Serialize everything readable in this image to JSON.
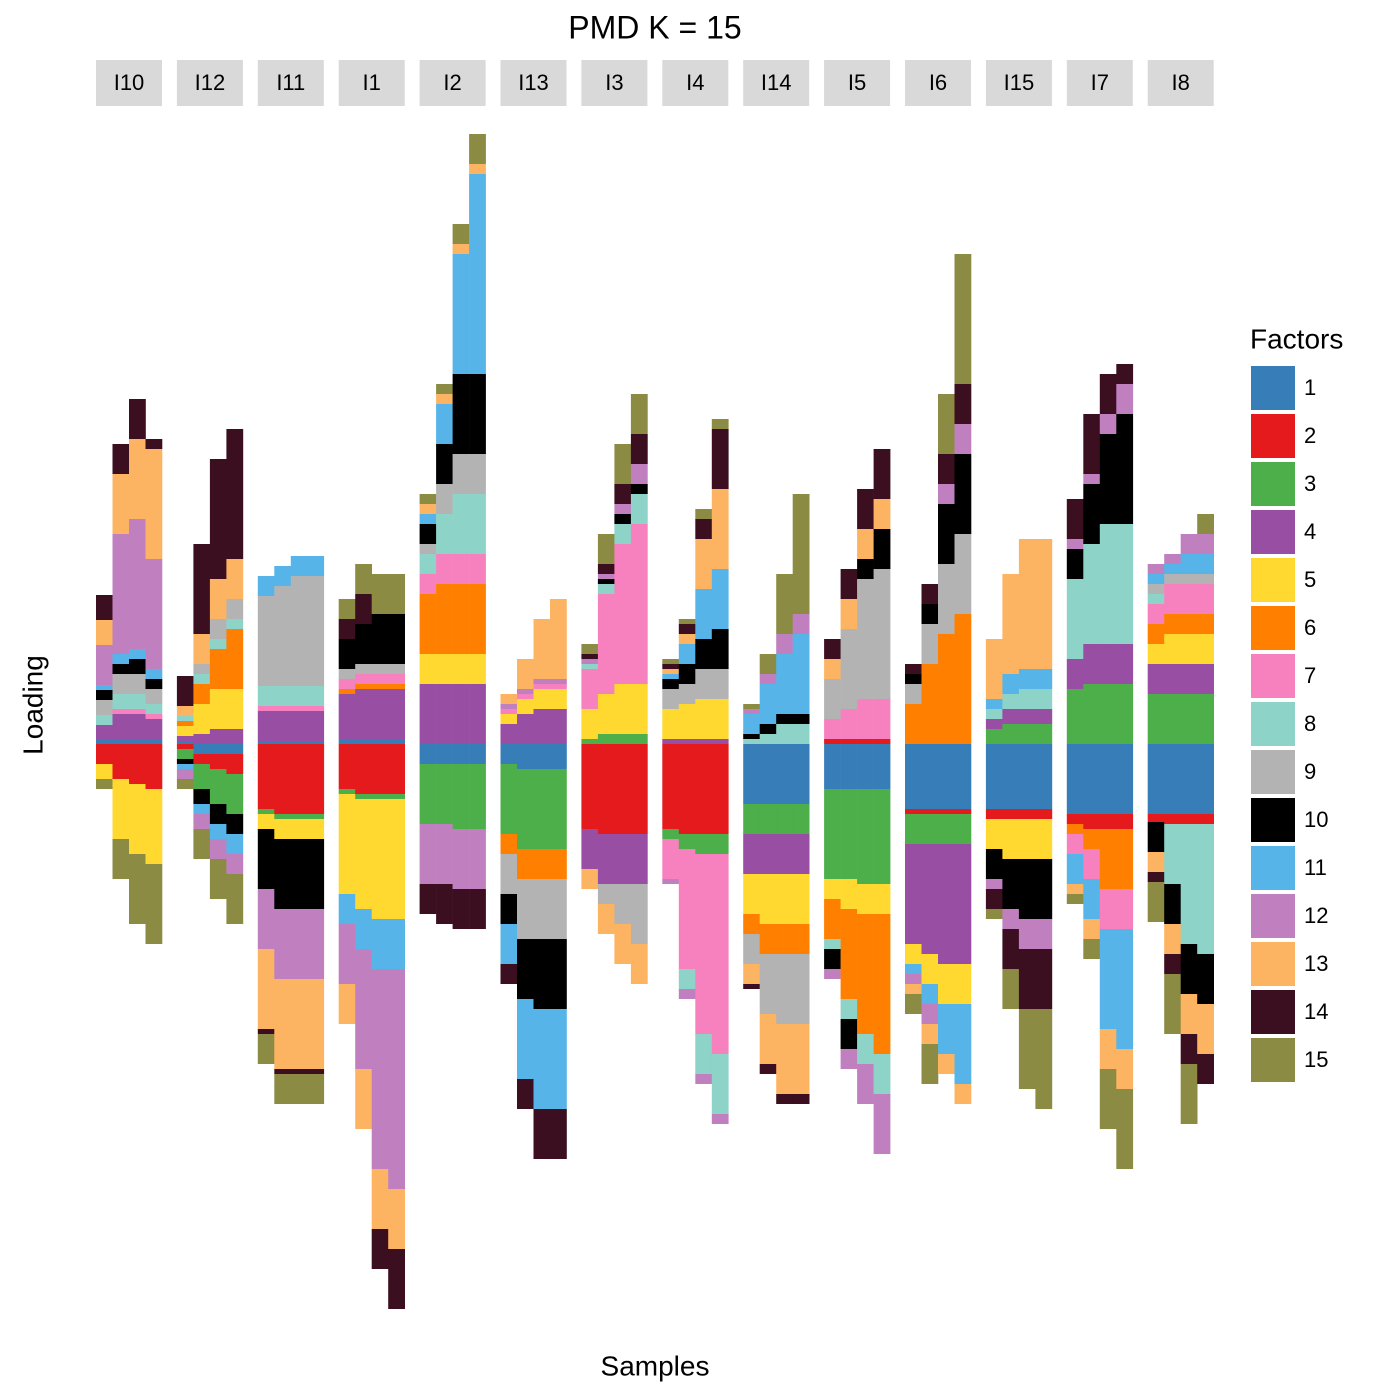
{
  "chart_data": {
    "type": "faceted_stacked_bar",
    "title": "PMD K = 15",
    "x_label": "Samples",
    "y_label": "Loading",
    "ylim": [
      -586,
      624
    ],
    "legend": {
      "title": "Factors",
      "items": [
        {
          "name": "1",
          "color": "#377eb8"
        },
        {
          "name": "2",
          "color": "#e41a1c"
        },
        {
          "name": "3",
          "color": "#4daf4a"
        },
        {
          "name": "4",
          "color": "#984ea3"
        },
        {
          "name": "5",
          "color": "#ffd92f"
        },
        {
          "name": "6",
          "color": "#ff7f00"
        },
        {
          "name": "7",
          "color": "#f781bf"
        },
        {
          "name": "8",
          "color": "#8dd3c7"
        },
        {
          "name": "9",
          "color": "#b3b3b3"
        },
        {
          "name": "10",
          "color": "#000000"
        },
        {
          "name": "11",
          "color": "#56b4e9"
        },
        {
          "name": "12",
          "color": "#c080c0"
        },
        {
          "name": "13",
          "color": "#fdb462"
        },
        {
          "name": "14",
          "color": "#3b0f1f"
        },
        {
          "name": "15",
          "color": "#8b8b44"
        }
      ]
    },
    "facets": [
      {
        "label": "I10",
        "samples": [
          [
            4,
            -20,
            0,
            15,
            -15,
            0,
            0,
            10,
            15,
            10,
            5,
            40,
            25,
            25,
            -10
          ],
          [
            5,
            -35,
            0,
            25,
            -60,
            0,
            5,
            15,
            20,
            10,
            10,
            120,
            60,
            30,
            -40
          ],
          [
            5,
            -40,
            0,
            25,
            -70,
            0,
            5,
            15,
            20,
            15,
            10,
            130,
            80,
            40,
            -70
          ],
          [
            5,
            -45,
            0,
            20,
            -75,
            0,
            5,
            10,
            15,
            10,
            10,
            110,
            110,
            10,
            -80
          ]
        ]
      },
      {
        "label": "I12",
        "samples": [
          [
            3,
            -5,
            -10,
            5,
            10,
            5,
            0,
            5,
            0,
            -5,
            -5,
            -10,
            10,
            30,
            -10
          ],
          [
            -10,
            -10,
            -25,
            10,
            30,
            20,
            0,
            10,
            10,
            -15,
            -10,
            -15,
            30,
            90,
            -30
          ],
          [
            -10,
            -15,
            -35,
            15,
            40,
            40,
            0,
            10,
            20,
            -20,
            -15,
            -20,
            40,
            120,
            -40
          ],
          [
            -10,
            -20,
            -40,
            15,
            40,
            60,
            0,
            10,
            20,
            -20,
            -20,
            -20,
            40,
            130,
            -50
          ]
        ]
      },
      {
        "label": "I11",
        "samples": [
          [
            3,
            -65,
            -5,
            30,
            -15,
            0,
            5,
            20,
            90,
            -60,
            20,
            -60,
            -80,
            -5,
            -30
          ],
          [
            3,
            -70,
            -5,
            30,
            -20,
            0,
            5,
            20,
            100,
            -70,
            20,
            -70,
            -90,
            -5,
            -30
          ],
          [
            3,
            -70,
            -5,
            30,
            -20,
            0,
            5,
            20,
            110,
            -70,
            20,
            -70,
            -90,
            -5,
            -30
          ],
          [
            3,
            -70,
            -5,
            30,
            -20,
            0,
            5,
            20,
            110,
            -70,
            20,
            -70,
            -90,
            -5,
            -30
          ]
        ]
      },
      {
        "label": "I1",
        "samples": [
          [
            5,
            -45,
            -5,
            45,
            -100,
            5,
            10,
            0,
            10,
            30,
            -30,
            -60,
            -40,
            20,
            20
          ],
          [
            5,
            -50,
            -5,
            50,
            -110,
            5,
            10,
            0,
            10,
            40,
            -40,
            -120,
            -60,
            30,
            30
          ],
          [
            5,
            -50,
            -5,
            50,
            -120,
            5,
            10,
            0,
            10,
            50,
            -50,
            -200,
            -60,
            -40,
            40
          ],
          [
            5,
            -50,
            -5,
            50,
            -120,
            5,
            10,
            0,
            10,
            50,
            -50,
            -220,
            -60,
            -60,
            40
          ]
        ]
      },
      {
        "label": "I2",
        "samples": [
          [
            -20,
            0,
            -60,
            60,
            30,
            60,
            20,
            20,
            10,
            20,
            10,
            -60,
            10,
            -30,
            10
          ],
          [
            -20,
            0,
            -60,
            60,
            30,
            70,
            30,
            40,
            30,
            40,
            40,
            -60,
            10,
            -40,
            10
          ],
          [
            -20,
            0,
            -65,
            60,
            30,
            70,
            30,
            60,
            40,
            80,
            120,
            -60,
            10,
            -40,
            20
          ],
          [
            -20,
            0,
            -65,
            60,
            30,
            70,
            30,
            60,
            40,
            80,
            200,
            -60,
            10,
            -40,
            30
          ]
        ]
      },
      {
        "label": "I13",
        "samples": [
          [
            -20,
            0,
            -70,
            20,
            10,
            -20,
            5,
            0,
            -40,
            -30,
            -40,
            5,
            10,
            -20,
            0
          ],
          [
            -25,
            0,
            -80,
            30,
            15,
            -30,
            5,
            0,
            -60,
            -60,
            -80,
            5,
            30,
            -30,
            0
          ],
          [
            -25,
            0,
            -80,
            35,
            20,
            -30,
            5,
            0,
            -60,
            -70,
            -100,
            5,
            60,
            -50,
            0
          ],
          [
            -25,
            0,
            -80,
            35,
            20,
            -30,
            5,
            0,
            -60,
            -70,
            -100,
            5,
            80,
            -50,
            0
          ]
        ]
      },
      {
        "label": "I3",
        "samples": [
          [
            0,
            -85,
            5,
            -40,
            30,
            0,
            40,
            5,
            0,
            0,
            0,
            5,
            -20,
            5,
            10
          ],
          [
            0,
            -90,
            10,
            -50,
            40,
            0,
            100,
            10,
            -20,
            5,
            0,
            5,
            -30,
            10,
            30
          ],
          [
            0,
            -90,
            10,
            -50,
            50,
            0,
            140,
            20,
            -40,
            10,
            0,
            10,
            -40,
            20,
            40
          ],
          [
            0,
            -90,
            10,
            -50,
            50,
            0,
            160,
            30,
            -60,
            10,
            0,
            20,
            -40,
            30,
            40
          ]
        ]
      },
      {
        "label": "I4",
        "samples": [
          [
            0,
            -85,
            -10,
            5,
            30,
            0,
            -40,
            0,
            20,
            10,
            5,
            -5,
            5,
            5,
            5
          ],
          [
            0,
            -90,
            -15,
            5,
            35,
            0,
            -120,
            -20,
            20,
            20,
            20,
            -10,
            10,
            10,
            5
          ],
          [
            0,
            -90,
            -20,
            5,
            40,
            0,
            -180,
            -40,
            30,
            30,
            50,
            -10,
            50,
            20,
            10
          ],
          [
            0,
            -90,
            -20,
            5,
            40,
            0,
            -200,
            -60,
            30,
            40,
            60,
            -10,
            80,
            60,
            10
          ]
        ]
      },
      {
        "label": "I14",
        "samples": [
          [
            -60,
            0,
            -30,
            -40,
            -40,
            -20,
            0,
            5,
            -30,
            5,
            20,
            5,
            -20,
            -5,
            5
          ],
          [
            -60,
            0,
            -30,
            -40,
            -50,
            -30,
            0,
            10,
            -60,
            10,
            40,
            10,
            -50,
            -10,
            20
          ],
          [
            -60,
            0,
            -30,
            -40,
            -50,
            -30,
            0,
            20,
            -70,
            10,
            60,
            20,
            -70,
            -10,
            60
          ],
          [
            -60,
            0,
            -30,
            -40,
            -50,
            -30,
            0,
            20,
            -70,
            10,
            80,
            20,
            -70,
            -10,
            120
          ]
        ]
      },
      {
        "label": "I5",
        "samples": [
          [
            -45,
            5,
            -90,
            0,
            -20,
            -40,
            20,
            -10,
            40,
            -20,
            0,
            -10,
            20,
            20,
            0
          ],
          [
            -45,
            5,
            -90,
            0,
            -30,
            -90,
            30,
            -20,
            80,
            -30,
            0,
            -20,
            30,
            30,
            0
          ],
          [
            -45,
            5,
            -95,
            0,
            -30,
            -120,
            40,
            -30,
            120,
            20,
            0,
            -40,
            30,
            40,
            0
          ],
          [
            -45,
            5,
            -95,
            0,
            -30,
            -140,
            40,
            -40,
            130,
            40,
            0,
            -60,
            30,
            50,
            0
          ]
        ]
      },
      {
        "label": "I6",
        "samples": [
          [
            -65,
            -5,
            -30,
            -100,
            -20,
            40,
            0,
            0,
            20,
            10,
            -10,
            -10,
            -10,
            10,
            -20
          ],
          [
            -65,
            -5,
            -30,
            -110,
            -30,
            80,
            0,
            0,
            40,
            20,
            -20,
            -20,
            -20,
            20,
            -40
          ],
          [
            -65,
            -5,
            -30,
            -120,
            -40,
            110,
            0,
            0,
            70,
            60,
            -50,
            20,
            -20,
            30,
            60
          ],
          [
            -65,
            -5,
            -30,
            -120,
            -40,
            130,
            0,
            0,
            80,
            80,
            -80,
            30,
            -20,
            40,
            130
          ]
        ]
      },
      {
        "label": "I15",
        "samples": [
          [
            -65,
            -10,
            15,
            10,
            -30,
            0,
            0,
            10,
            0,
            -30,
            10,
            -10,
            60,
            -20,
            -10
          ],
          [
            -65,
            -10,
            20,
            15,
            -40,
            0,
            0,
            15,
            0,
            -50,
            20,
            -20,
            100,
            -40,
            -40
          ],
          [
            -65,
            -10,
            20,
            15,
            -40,
            0,
            0,
            20,
            0,
            -60,
            20,
            -30,
            130,
            -60,
            -80
          ],
          [
            -65,
            -10,
            20,
            15,
            -40,
            0,
            0,
            20,
            0,
            -60,
            20,
            -30,
            130,
            -60,
            -100
          ]
        ]
      },
      {
        "label": "I7",
        "samples": [
          [
            -70,
            -10,
            55,
            30,
            0,
            -10,
            -20,
            80,
            0,
            30,
            -30,
            10,
            -10,
            40,
            -10
          ],
          [
            -70,
            -15,
            60,
            40,
            0,
            -20,
            -30,
            100,
            0,
            60,
            -40,
            10,
            -20,
            60,
            -20
          ],
          [
            -70,
            -15,
            60,
            40,
            0,
            -60,
            -40,
            120,
            0,
            90,
            -100,
            20,
            -40,
            40,
            -60
          ],
          [
            -70,
            -15,
            60,
            40,
            0,
            -60,
            -40,
            120,
            0,
            110,
            -120,
            30,
            -40,
            20,
            -80
          ]
        ]
      },
      {
        "label": "I8",
        "samples": [
          [
            -70,
            -8,
            50,
            30,
            20,
            20,
            20,
            10,
            10,
            -30,
            10,
            10,
            -20,
            -10,
            -40
          ],
          [
            -70,
            -10,
            50,
            30,
            30,
            20,
            30,
            -60,
            10,
            -40,
            10,
            10,
            -30,
            -20,
            -60
          ],
          [
            -70,
            -10,
            50,
            30,
            30,
            20,
            30,
            -120,
            10,
            -50,
            20,
            20,
            -40,
            -30,
            -60
          ],
          [
            -70,
            -10,
            50,
            30,
            30,
            20,
            30,
            -130,
            10,
            -50,
            20,
            20,
            -50,
            -30,
            20
          ]
        ]
      }
    ]
  }
}
